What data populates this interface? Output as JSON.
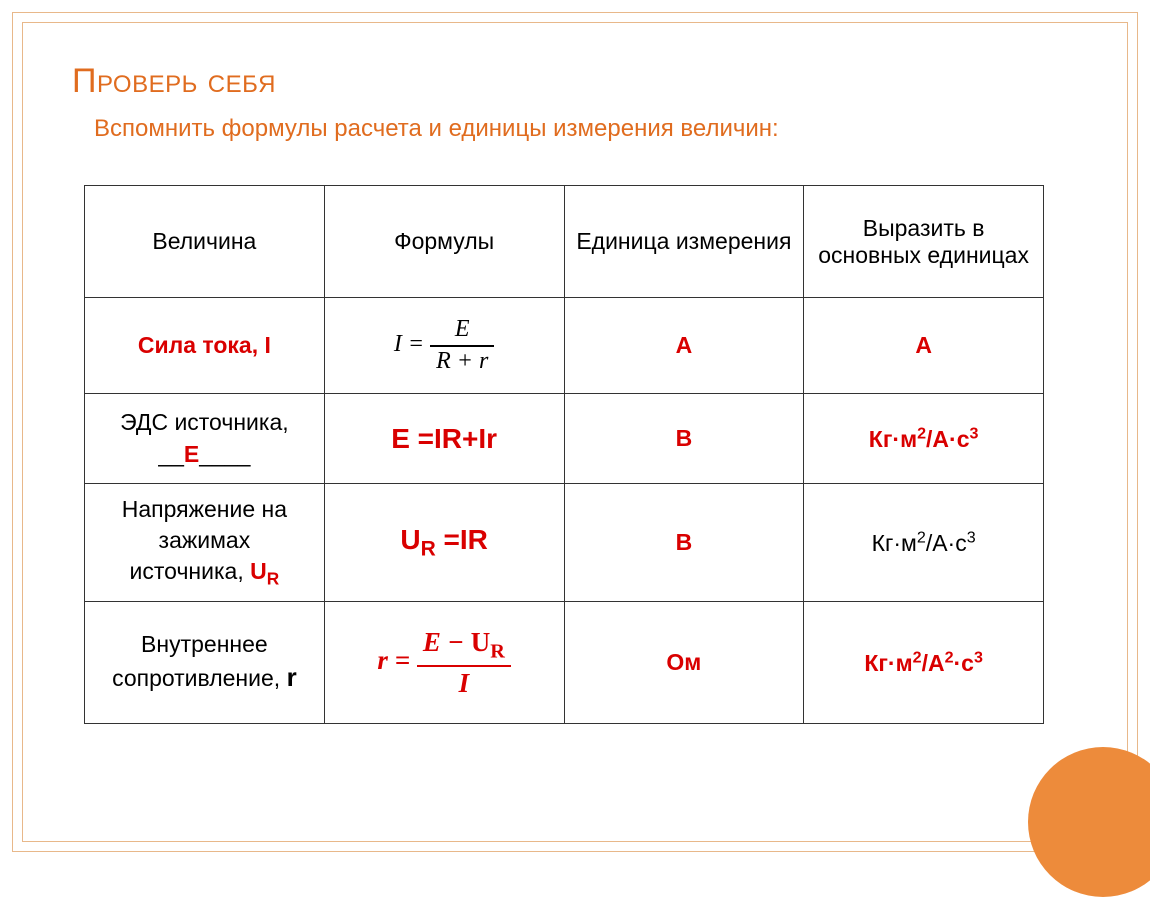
{
  "colors": {
    "accent": "#e06c1f",
    "border": "#e8b88a",
    "red": "#d90000",
    "circle": "#ed8b3b",
    "table_border": "#333333",
    "background": "#ffffff"
  },
  "title": "Проверь себя",
  "subtitle": "Вспомнить формулы расчета и единицы измерения величин:",
  "table": {
    "headers": [
      "Величина",
      "Формулы",
      "Единица измерения",
      "Выразить в основных единицах"
    ],
    "rows": [
      {
        "label_prefix": "Сила тока,  ",
        "label_symbol": "I",
        "label_red": true,
        "label_bold": true,
        "formula_type": "fraction",
        "formula_lhs": "I",
        "formula_num": "E",
        "formula_den": "R + r",
        "formula_red": false,
        "unit": "А",
        "unit_red": true,
        "unit_bold": true,
        "base": "А",
        "base_red": true,
        "base_bold": true
      },
      {
        "label_line1": "ЭДС источника,",
        "label_line2_prefix": "__",
        "label_line2_symbol": "E",
        "label_line2_suffix": "____",
        "label_red": false,
        "symbol_red": true,
        "formula_type": "inline",
        "formula_text": "E =IR+Ir",
        "formula_red": true,
        "formula_bold": true,
        "unit": "В",
        "unit_red": true,
        "unit_bold": true,
        "base_html": "Кг·м<sup>2</sup>/А·с<sup>3</sup>",
        "base_red": true,
        "base_bold": true
      },
      {
        "label_line1": "Напряжение на",
        "label_line2": "зажимах",
        "label_line3_prefix": "источника, ",
        "label_line3_symbol_html": "U<sub>R</sub>",
        "symbol_red": true,
        "formula_type": "inline_sub",
        "formula_lhs_html": "U<sub>R</sub>",
        "formula_rhs": " =IR",
        "formula_red": true,
        "formula_bold": true,
        "unit": "В",
        "unit_red": true,
        "unit_bold": true,
        "base_html": "Кг·м<sup>2</sup>/А·с<sup>3</sup>",
        "base_red": false,
        "base_bold": false
      },
      {
        "label_line1": "Внутреннее",
        "label_line2_prefix": "сопротивление, ",
        "label_line2_symbol": "r",
        "symbol_red": false,
        "symbol_bold": true,
        "formula_type": "fraction",
        "formula_lhs": "r",
        "formula_num_html": "E − <span class=\"up\">U<sub>R</sub></span>",
        "formula_den": "I",
        "formula_red": true,
        "formula_bold": true,
        "unit": "Ом",
        "unit_red": true,
        "unit_bold": true,
        "base_html": "Кг·м<sup>2</sup>/А<sup>2</sup>·с<sup>3</sup>",
        "base_red": true,
        "base_bold": true
      }
    ]
  }
}
